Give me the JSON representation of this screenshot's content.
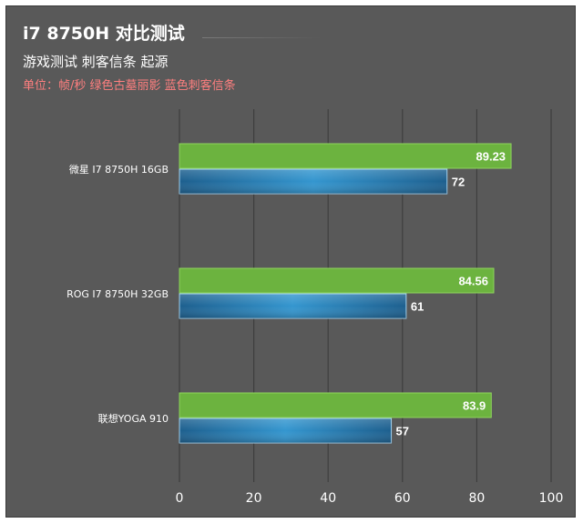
{
  "header": {
    "title": "i7 8750H 对比测试",
    "subtitle": "游戏测试 刺客信条 起源",
    "note": "单位：帧/秒 绿色古墓丽影 蓝色刺客信条"
  },
  "chart_data": {
    "type": "bar",
    "orientation": "horizontal",
    "title": "i7 8750H 对比测试",
    "subtitle": "游戏测试 刺客信条 起源",
    "categories": [
      "微星 I7 8750H 16GB",
      "ROG I7 8750H 32GB",
      "联想YOGA 910"
    ],
    "series": [
      {
        "values": [
          89.23,
          84.56,
          83.9
        ],
        "color": "#6cb33f"
      },
      {
        "values": [
          72,
          61,
          57
        ],
        "color": "#2e7fb5"
      }
    ],
    "xlim": [
      0,
      100
    ],
    "xticks": [
      0,
      20,
      40,
      60,
      80,
      100
    ],
    "grid": true
  }
}
